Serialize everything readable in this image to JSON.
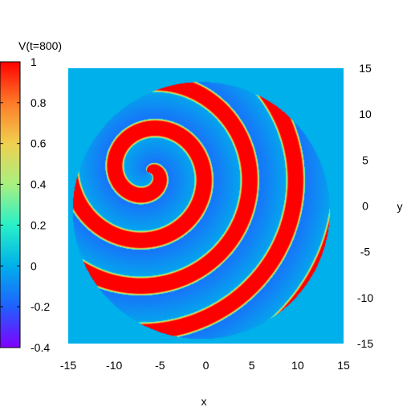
{
  "chart_data": {
    "type": "heatmap",
    "title": "",
    "xlabel": "x",
    "ylabel": "y",
    "xlim": [
      -15,
      15
    ],
    "ylim": [
      -15,
      15
    ],
    "x_ticks": [
      "-15",
      "-10",
      "-5",
      "0",
      "5",
      "10",
      "15"
    ],
    "y_ticks": [
      "15",
      "10",
      "5",
      "0",
      "-5",
      "-10",
      "-15"
    ],
    "colorbar": {
      "label": "V(t=800)",
      "range": [
        -0.4,
        1
      ],
      "ticks": [
        "1",
        "0.8",
        "0.6",
        "0.4",
        "0.2",
        "0",
        "-0.2",
        "-0.4"
      ],
      "colormap": [
        "#7f00ff",
        "#2060ff",
        "#00b0ea",
        "#28f0c8",
        "#a8f080",
        "#f0d050",
        "#ff7a28",
        "#ff0000"
      ]
    },
    "field": {
      "pattern": "spiral wave on a circular domain",
      "domain_center": [
        -0.5,
        -0.5
      ],
      "domain_radius": 14,
      "outside_value": 0.0,
      "spiral_core": [
        -6.3,
        3.6
      ],
      "arms": 1,
      "wavelength": 5.0,
      "front_value": 1.0,
      "rest_value": -0.15
    }
  }
}
